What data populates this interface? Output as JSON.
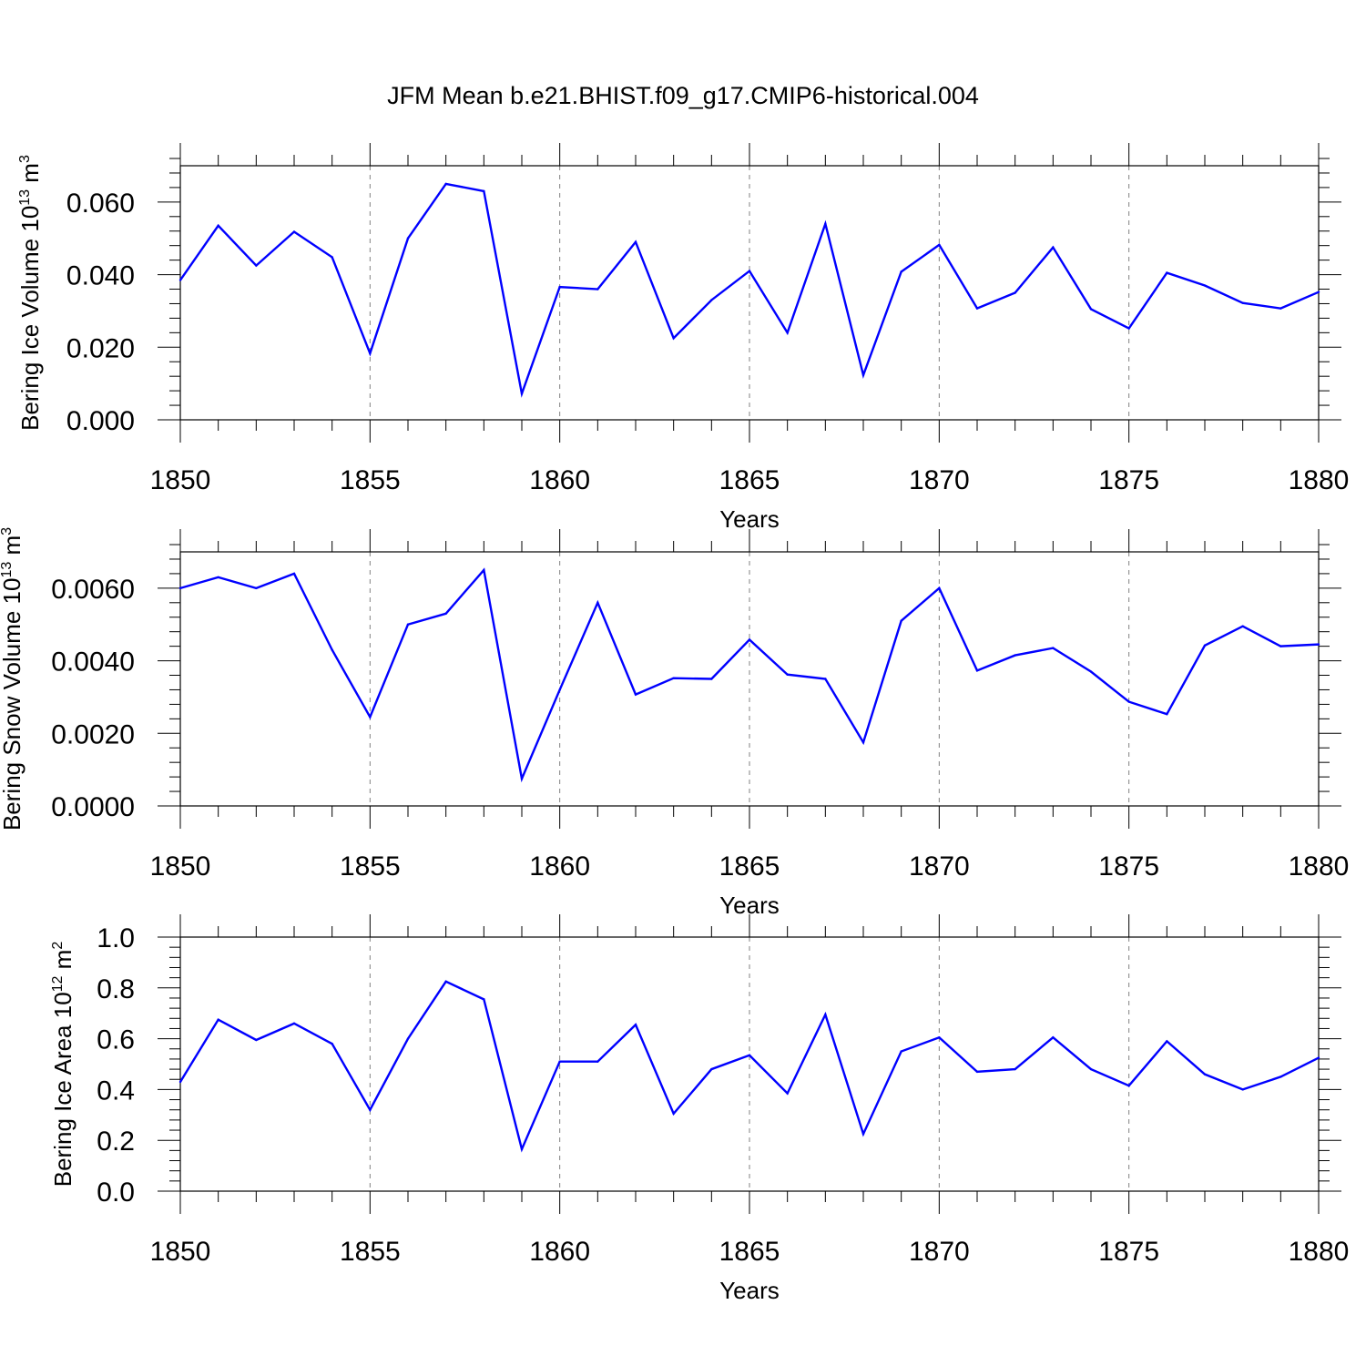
{
  "title": "JFM Mean b.e21.BHIST.f09_g17.CMIP6-historical.004",
  "colors": {
    "line": "#0000ff",
    "axis": "#000000",
    "grid": "#808080",
    "background": "#ffffff"
  },
  "chart_data": [
    {
      "type": "line",
      "title": "",
      "xlabel": "Years",
      "ylabel": "Bering Ice Volume 10",
      "ylabel_exp": "13",
      "ylabel_unit": " m",
      "ylabel_unit_exp": "3",
      "xlim": [
        1850,
        1880
      ],
      "ylim": [
        0.0,
        0.07
      ],
      "xticks": [
        1850,
        1855,
        1860,
        1865,
        1870,
        1875,
        1880
      ],
      "xtick_labels": [
        "1850",
        "1855",
        "1860",
        "1865",
        "1870",
        "1875",
        "1880"
      ],
      "yticks": [
        0.0,
        0.02,
        0.04,
        0.06
      ],
      "ytick_labels": [
        "0.000",
        "0.020",
        "0.040",
        "0.060"
      ],
      "grid": "vertical dashed at major x ticks",
      "x": [
        1850,
        1851,
        1852,
        1853,
        1854,
        1855,
        1856,
        1857,
        1858,
        1859,
        1860,
        1861,
        1862,
        1863,
        1864,
        1865,
        1866,
        1867,
        1868,
        1869,
        1870,
        1871,
        1872,
        1873,
        1874,
        1875,
        1876,
        1877,
        1878,
        1879,
        1880
      ],
      "values": [
        0.0385,
        0.0535,
        0.0425,
        0.0518,
        0.0448,
        0.0183,
        0.05,
        0.065,
        0.063,
        0.0072,
        0.0366,
        0.036,
        0.049,
        0.0225,
        0.033,
        0.041,
        0.024,
        0.054,
        0.0123,
        0.0408,
        0.0482,
        0.0307,
        0.035,
        0.0475,
        0.0305,
        0.0252,
        0.0405,
        0.037,
        0.0322,
        0.0307,
        0.0352
      ]
    },
    {
      "type": "line",
      "title": "",
      "xlabel": "Years",
      "ylabel": "Bering Snow Volume 10",
      "ylabel_exp": "13",
      "ylabel_unit": " m",
      "ylabel_unit_exp": "3",
      "xlim": [
        1850,
        1880
      ],
      "ylim": [
        0.0,
        0.007
      ],
      "xticks": [
        1850,
        1855,
        1860,
        1865,
        1870,
        1875,
        1880
      ],
      "xtick_labels": [
        "1850",
        "1855",
        "1860",
        "1865",
        "1870",
        "1875",
        "1880"
      ],
      "yticks": [
        0.0,
        0.002,
        0.004,
        0.006
      ],
      "ytick_labels": [
        "0.0000",
        "0.0020",
        "0.0040",
        "0.0060"
      ],
      "grid": "vertical dashed at major x ticks",
      "x": [
        1850,
        1851,
        1852,
        1853,
        1854,
        1855,
        1856,
        1857,
        1858,
        1859,
        1860,
        1861,
        1862,
        1863,
        1864,
        1865,
        1866,
        1867,
        1868,
        1869,
        1870,
        1871,
        1872,
        1873,
        1874,
        1875,
        1876,
        1877,
        1878,
        1879,
        1880
      ],
      "values": [
        0.006,
        0.0063,
        0.006,
        0.0064,
        0.0043,
        0.00245,
        0.005,
        0.0053,
        0.0065,
        0.00075,
        0.0032,
        0.0056,
        0.00307,
        0.00352,
        0.0035,
        0.00458,
        0.00362,
        0.0035,
        0.00175,
        0.0051,
        0.006,
        0.00373,
        0.00415,
        0.00435,
        0.0037,
        0.00287,
        0.00253,
        0.00442,
        0.00495,
        0.0044,
        0.00445
      ]
    },
    {
      "type": "line",
      "title": "",
      "xlabel": "Years",
      "ylabel": "Bering Ice Area 10",
      "ylabel_exp": "12",
      "ylabel_unit": " m",
      "ylabel_unit_exp": "2",
      "xlim": [
        1850,
        1880
      ],
      "ylim": [
        0.0,
        1.0
      ],
      "xticks": [
        1850,
        1855,
        1860,
        1865,
        1870,
        1875,
        1880
      ],
      "xtick_labels": [
        "1850",
        "1855",
        "1860",
        "1865",
        "1870",
        "1875",
        "1880"
      ],
      "yticks": [
        0.0,
        0.2,
        0.4,
        0.6,
        0.8,
        1.0
      ],
      "ytick_labels": [
        "0.0",
        "0.2",
        "0.4",
        "0.6",
        "0.8",
        "1.0"
      ],
      "grid": "vertical dashed at major x ticks",
      "x": [
        1850,
        1851,
        1852,
        1853,
        1854,
        1855,
        1856,
        1857,
        1858,
        1859,
        1860,
        1861,
        1862,
        1863,
        1864,
        1865,
        1866,
        1867,
        1868,
        1869,
        1870,
        1871,
        1872,
        1873,
        1874,
        1875,
        1876,
        1877,
        1878,
        1879,
        1880
      ],
      "values": [
        0.43,
        0.675,
        0.595,
        0.66,
        0.58,
        0.32,
        0.6,
        0.825,
        0.755,
        0.165,
        0.51,
        0.51,
        0.655,
        0.305,
        0.48,
        0.535,
        0.385,
        0.695,
        0.225,
        0.55,
        0.605,
        0.47,
        0.48,
        0.605,
        0.48,
        0.415,
        0.59,
        0.46,
        0.4,
        0.45,
        0.525
      ]
    }
  ]
}
